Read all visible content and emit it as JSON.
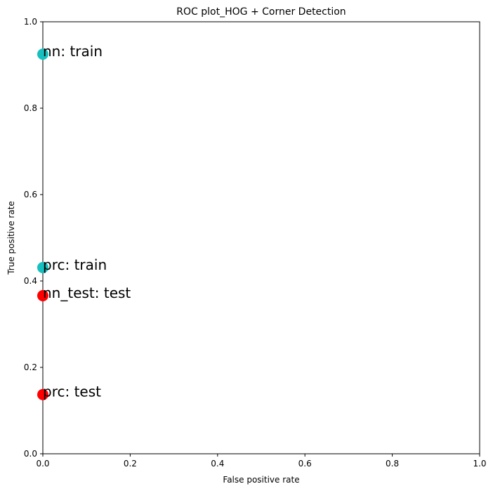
{
  "chart_data": {
    "type": "scatter",
    "title": "ROC plot_HOG + Corner Detection",
    "xlabel": "False positive rate",
    "ylabel": "True positive rate",
    "xlim": [
      0,
      1
    ],
    "ylim": [
      0,
      1
    ],
    "xticks": [
      "0.0",
      "0.2",
      "0.4",
      "0.6",
      "0.8",
      "1.0"
    ],
    "yticks": [
      "0.0",
      "0.2",
      "0.4",
      "0.6",
      "0.8",
      "1.0"
    ],
    "grid": false,
    "points": [
      {
        "label": "nn: train",
        "x": 0.0,
        "y": 0.925,
        "color": "#17bfbf"
      },
      {
        "label": "prc: train",
        "x": 0.0,
        "y": 0.431,
        "color": "#17bfbf"
      },
      {
        "label": "nn_test: test",
        "x": 0.0,
        "y": 0.366,
        "color": "#ff0000"
      },
      {
        "label": "prc: test",
        "x": 0.0,
        "y": 0.137,
        "color": "#ff0000"
      }
    ]
  }
}
